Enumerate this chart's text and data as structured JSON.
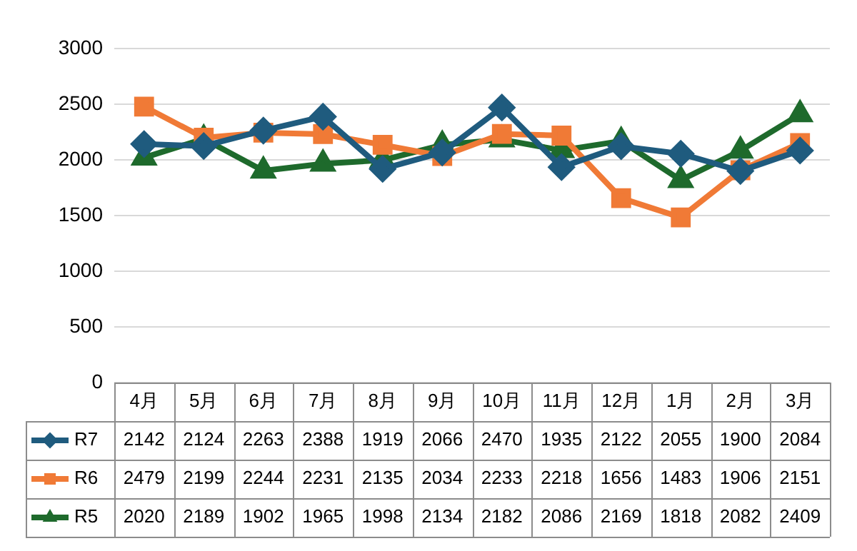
{
  "chart_data": {
    "type": "line",
    "categories": [
      "4月",
      "5月",
      "6月",
      "7月",
      "8月",
      "9月",
      "10月",
      "11月",
      "12月",
      "1月",
      "2月",
      "3月"
    ],
    "series": [
      {
        "name": "R7",
        "color": "#1f5b7e",
        "marker": "diamond",
        "values": [
          2142,
          2124,
          2263,
          2388,
          1919,
          2066,
          2470,
          1935,
          2122,
          2055,
          1900,
          2084
        ]
      },
      {
        "name": "R6",
        "color": "#f07a36",
        "marker": "square",
        "values": [
          2479,
          2199,
          2244,
          2231,
          2135,
          2034,
          2233,
          2218,
          1656,
          1483,
          1906,
          2151
        ]
      },
      {
        "name": "R5",
        "color": "#1e6a2c",
        "marker": "triangle",
        "values": [
          2020,
          2189,
          1902,
          1965,
          1998,
          2134,
          2182,
          2086,
          2169,
          1818,
          2082,
          2409
        ]
      }
    ],
    "ylim": [
      0,
      3000
    ],
    "yticks": [
      0,
      500,
      1000,
      1500,
      2000,
      2500,
      3000
    ],
    "grid": "y",
    "legend": "bottom",
    "data_labels": true
  }
}
